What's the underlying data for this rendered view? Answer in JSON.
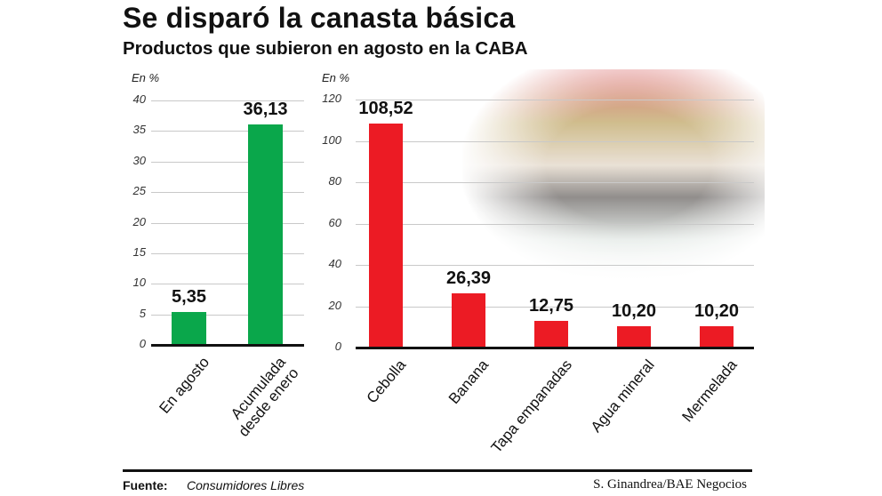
{
  "header": {
    "title": "Se disparó la canasta básica",
    "subtitle": "Productos que subieron en agosto en la CABA"
  },
  "footer": {
    "source_label": "Fuente:",
    "source_value": "Consumidores Libres",
    "credit": "S. Ginandrea/BAE Negocios"
  },
  "colors": {
    "green": "#0aa74b",
    "red": "#ec1b24"
  },
  "chart_data": [
    {
      "type": "bar",
      "title": "",
      "ylabel": "En %",
      "xlabel": "",
      "ylim": [
        0,
        40
      ],
      "yticks": [
        "0",
        "5",
        "10",
        "15",
        "20",
        "25",
        "30",
        "35",
        "40"
      ],
      "grid": true,
      "categories": [
        "En agosto",
        "Acumulada desde enero"
      ],
      "category_lines": [
        [
          "En agosto"
        ],
        [
          "Acumulada",
          "desde enero"
        ]
      ],
      "values": [
        5.35,
        36.13
      ],
      "value_labels": [
        "5,35",
        "36,13"
      ],
      "color": "#0aa74b"
    },
    {
      "type": "bar",
      "title": "",
      "ylabel": "En %",
      "xlabel": "",
      "ylim": [
        0,
        120
      ],
      "yticks": [
        "0",
        "20",
        "40",
        "60",
        "80",
        "100",
        "120"
      ],
      "grid": true,
      "categories": [
        "Cebolla",
        "Banana",
        "Tapa empanadas",
        "Agua mineral",
        "Mermelada"
      ],
      "values": [
        108.52,
        26.39,
        12.75,
        10.2,
        10.2
      ],
      "value_labels": [
        "108,52",
        "26,39",
        "12,75",
        "10,20",
        "10,20"
      ],
      "color": "#ec1b24",
      "background_image": "grocery-store-photo"
    }
  ]
}
